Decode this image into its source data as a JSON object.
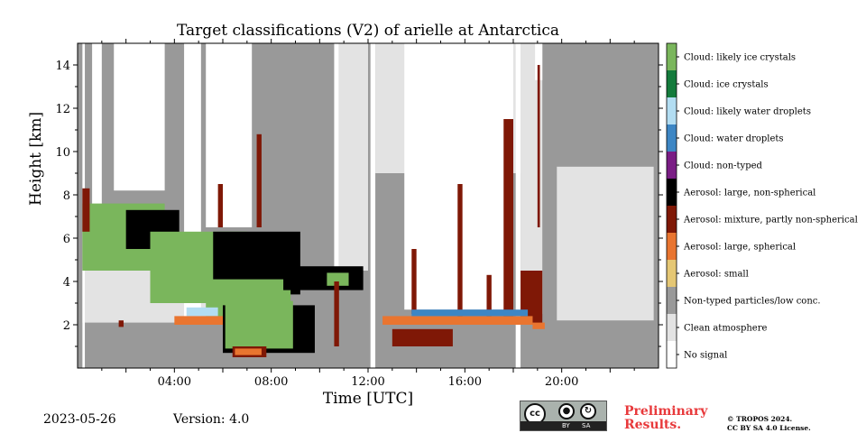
{
  "chart_data": {
    "type": "heatmap",
    "title": "Target classifications (V2) of arielle at Antarctica",
    "xlabel": "Time [UTC]",
    "ylabel": "Height [km]",
    "xlim": [
      0,
      24
    ],
    "ylim": [
      0,
      15
    ],
    "xticks": [
      {
        "value": 4,
        "label": "04:00"
      },
      {
        "value": 8,
        "label": "08:00"
      },
      {
        "value": 12,
        "label": "12:00"
      },
      {
        "value": 16,
        "label": "16:00"
      },
      {
        "value": 20,
        "label": "20:00"
      }
    ],
    "yticks": [
      {
        "value": 2,
        "label": "2"
      },
      {
        "value": 4,
        "label": "4"
      },
      {
        "value": 6,
        "label": "6"
      },
      {
        "value": 8,
        "label": "8"
      },
      {
        "value": 10,
        "label": "10"
      },
      {
        "value": 12,
        "label": "12"
      },
      {
        "value": 14,
        "label": "14"
      }
    ],
    "classes": [
      {
        "label": "No signal",
        "color": "#ffffff"
      },
      {
        "label": "Clean atmosphere",
        "color": "#e3e3e3"
      },
      {
        "label": "Non-typed particles/low conc.",
        "color": "#999999"
      },
      {
        "label": "Aerosol: small",
        "color": "#e5c774"
      },
      {
        "label": "Aerosol: large, spherical",
        "color": "#e97530"
      },
      {
        "label": "Aerosol: mixture, partly non-spherical",
        "color": "#7f1806"
      },
      {
        "label": "Aerosol: large, non-spherical",
        "color": "#000000"
      },
      {
        "label": "Cloud: non-typed",
        "color": "#7a1d85"
      },
      {
        "label": "Cloud: water droplets",
        "color": "#3d86c4"
      },
      {
        "label": "Cloud: likely water droplets",
        "color": "#b2ddf2"
      },
      {
        "label": "Cloud: ice crystals",
        "color": "#147b3c"
      },
      {
        "label": "Cloud: likely ice crystals",
        "color": "#7ab65c"
      }
    ],
    "regions": [
      {
        "cls": 2,
        "x": [
          0,
          24
        ],
        "y": [
          0,
          15
        ]
      },
      {
        "cls": 1,
        "x": [
          0.2,
          8.0
        ],
        "y": [
          2.1,
          4.6
        ]
      },
      {
        "cls": 0,
        "x": [
          0.2,
          0.3
        ],
        "y": [
          0,
          15
        ]
      },
      {
        "cls": 0,
        "x": [
          0.6,
          1.0
        ],
        "y": [
          5.2,
          15
        ]
      },
      {
        "cls": 0,
        "x": [
          1.5,
          3.6
        ],
        "y": [
          8.2,
          15
        ]
      },
      {
        "cls": 0,
        "x": [
          4.4,
          5.1
        ],
        "y": [
          2.2,
          15
        ]
      },
      {
        "cls": 0,
        "x": [
          5.3,
          7.2
        ],
        "y": [
          6.5,
          15
        ]
      },
      {
        "cls": 0,
        "x": [
          10.6,
          10.8
        ],
        "y": [
          4.0,
          15
        ]
      },
      {
        "cls": 1,
        "x": [
          10.8,
          12.0
        ],
        "y": [
          4.5,
          15
        ]
      },
      {
        "cls": 0,
        "x": [
          12.1,
          12.3
        ],
        "y": [
          0,
          15
        ]
      },
      {
        "cls": 1,
        "x": [
          12.3,
          19.1
        ],
        "y": [
          9.0,
          15
        ]
      },
      {
        "cls": 0,
        "x": [
          13.5,
          18.0
        ],
        "y": [
          2.7,
          15
        ]
      },
      {
        "cls": 0,
        "x": [
          18.1,
          18.3
        ],
        "y": [
          0,
          15
        ]
      },
      {
        "cls": 1,
        "x": [
          18.3,
          19.2
        ],
        "y": [
          2.5,
          15
        ]
      },
      {
        "cls": 0,
        "x": [
          18.9,
          19.2
        ],
        "y": [
          13.3,
          15
        ]
      },
      {
        "cls": 1,
        "x": [
          19.8,
          23.8
        ],
        "y": [
          2.2,
          9.3
        ]
      },
      {
        "cls": 12,
        "x": [
          0.2,
          3.6
        ],
        "y": [
          4.5,
          7.6
        ]
      },
      {
        "cls": 11,
        "x": [
          1.1,
          3.3
        ],
        "y": [
          5.3,
          7.1
        ]
      },
      {
        "cls": 6,
        "x": [
          2.0,
          4.2
        ],
        "y": [
          5.5,
          7.3
        ]
      },
      {
        "cls": 12,
        "x": [
          3.0,
          7.0
        ],
        "y": [
          3.0,
          6.3
        ]
      },
      {
        "cls": 11,
        "x": [
          3.5,
          5.5
        ],
        "y": [
          3.3,
          5.2
        ]
      },
      {
        "cls": 6,
        "x": [
          5.6,
          9.2
        ],
        "y": [
          3.4,
          6.3
        ]
      },
      {
        "cls": 12,
        "x": [
          5.3,
          8.8
        ],
        "y": [
          2.3,
          4.1
        ]
      },
      {
        "cls": 6,
        "x": [
          6.0,
          9.8
        ],
        "y": [
          0.7,
          2.9
        ]
      },
      {
        "cls": 11,
        "x": [
          6.1,
          8.9
        ],
        "y": [
          0.9,
          3.1
        ]
      },
      {
        "cls": 5,
        "x": [
          6.4,
          7.8
        ],
        "y": [
          0.5,
          1.0
        ]
      },
      {
        "cls": 4,
        "x": [
          6.5,
          7.6
        ],
        "y": [
          0.6,
          0.9
        ]
      },
      {
        "cls": 9,
        "x": [
          4.5,
          5.8
        ],
        "y": [
          2.4,
          2.8
        ]
      },
      {
        "cls": 4,
        "x": [
          4.0,
          6.0
        ],
        "y": [
          2.0,
          2.4
        ]
      },
      {
        "cls": 6,
        "x": [
          8.5,
          11.8
        ],
        "y": [
          3.6,
          4.7
        ]
      },
      {
        "cls": 12,
        "x": [
          10.3,
          11.2
        ],
        "y": [
          3.8,
          4.4
        ]
      },
      {
        "cls": 5,
        "x": [
          0.2,
          0.5
        ],
        "y": [
          6.3,
          8.3
        ]
      },
      {
        "cls": 5,
        "x": [
          1.7,
          1.9
        ],
        "y": [
          1.9,
          2.2
        ]
      },
      {
        "cls": 5,
        "x": [
          7.4,
          7.6
        ],
        "y": [
          6.5,
          10.8
        ]
      },
      {
        "cls": 5,
        "x": [
          5.8,
          6.0
        ],
        "y": [
          6.5,
          8.5
        ]
      },
      {
        "cls": 5,
        "x": [
          10.6,
          10.8
        ],
        "y": [
          1.0,
          4.0
        ]
      },
      {
        "cls": 5,
        "x": [
          13.0,
          15.5
        ],
        "y": [
          1.0,
          1.8
        ]
      },
      {
        "cls": 5,
        "x": [
          13.8,
          14.0
        ],
        "y": [
          2.5,
          5.5
        ]
      },
      {
        "cls": 5,
        "x": [
          15.7,
          15.9
        ],
        "y": [
          2.0,
          8.5
        ]
      },
      {
        "cls": 5,
        "x": [
          16.9,
          17.1
        ],
        "y": [
          2.0,
          4.3
        ]
      },
      {
        "cls": 5,
        "x": [
          17.6,
          18.0
        ],
        "y": [
          2.0,
          11.5
        ]
      },
      {
        "cls": 5,
        "x": [
          18.3,
          19.2
        ],
        "y": [
          2.0,
          4.5
        ]
      },
      {
        "cls": 5,
        "x": [
          19.0,
          19.1
        ],
        "y": [
          6.5,
          14.0
        ]
      },
      {
        "cls": 4,
        "x": [
          12.6,
          18.8
        ],
        "y": [
          2.0,
          2.4
        ]
      },
      {
        "cls": 8,
        "x": [
          13.8,
          18.6
        ],
        "y": [
          2.4,
          2.7
        ]
      },
      {
        "cls": 4,
        "x": [
          18.8,
          19.3
        ],
        "y": [
          1.8,
          2.1
        ]
      }
    ]
  },
  "footer": {
    "date": "2023-05-26",
    "version": "Version: 4.0",
    "license_badge": {
      "cc": "cc",
      "by": "BY",
      "sa": "SA"
    },
    "preliminary": "Preliminary Results.",
    "copyright_line1": "© TROPOS 2024.",
    "copyright_line2": "CC BY SA 4.0 License."
  }
}
